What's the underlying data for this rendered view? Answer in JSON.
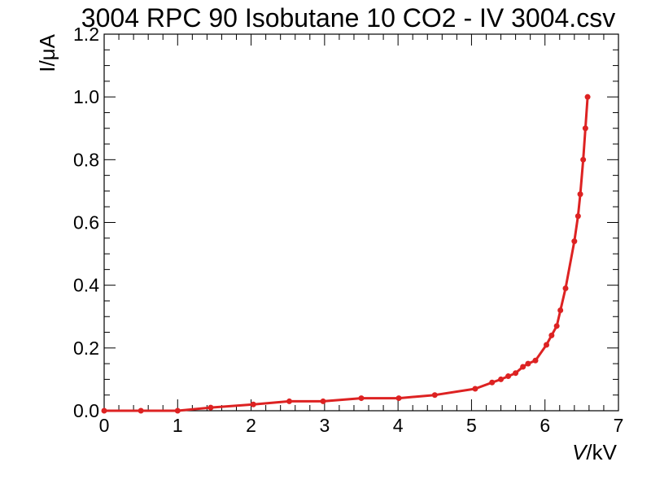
{
  "chart_data": {
    "type": "line",
    "title": "3004 RPC 90 Isobutane 10 CO2 - IV 3004.csv",
    "xlabel_italic": "V",
    "xlabel_unit": "/kV",
    "ylabel": "I/μA",
    "xlim": [
      0,
      7
    ],
    "ylim": [
      0,
      1.2
    ],
    "x_ticks": [
      "0",
      "1",
      "2",
      "3",
      "4",
      "5",
      "6",
      "7"
    ],
    "y_ticks": [
      "0.0",
      "0.2",
      "0.4",
      "0.6",
      "0.8",
      "1.0",
      "1.2"
    ],
    "x_tick_values": [
      0,
      1,
      2,
      3,
      4,
      5,
      6,
      7
    ],
    "y_tick_values": [
      0,
      0.2,
      0.4,
      0.6,
      0.8,
      1.0,
      1.2
    ],
    "grid": false,
    "series": [
      {
        "color": "#dd2222",
        "x": [
          0.0,
          0.5,
          1.0,
          1.45,
          2.03,
          2.52,
          2.98,
          3.5,
          4.01,
          4.5,
          5.05,
          5.28,
          5.4,
          5.5,
          5.6,
          5.7,
          5.77,
          5.87,
          6.02,
          6.09,
          6.16,
          6.21,
          6.28,
          6.4,
          6.45,
          6.48,
          6.52,
          6.55,
          6.58
        ],
        "y": [
          0.0,
          0.0,
          0.0,
          0.01,
          0.02,
          0.03,
          0.03,
          0.04,
          0.04,
          0.05,
          0.07,
          0.09,
          0.1,
          0.11,
          0.12,
          0.14,
          0.15,
          0.16,
          0.21,
          0.24,
          0.27,
          0.32,
          0.39,
          0.54,
          0.62,
          0.69,
          0.8,
          0.9,
          1.0
        ]
      }
    ]
  }
}
